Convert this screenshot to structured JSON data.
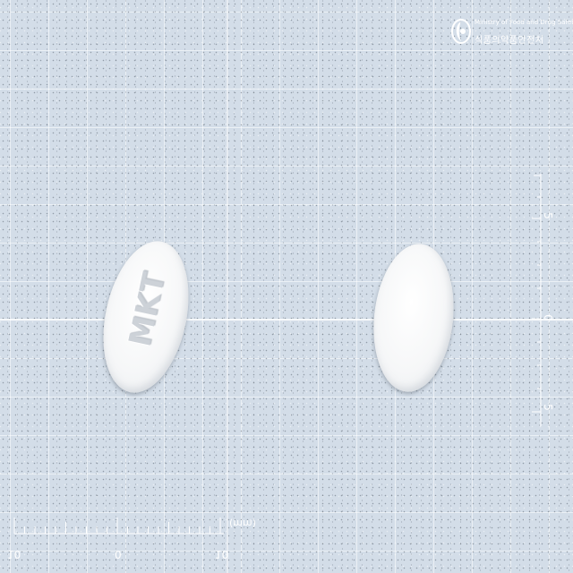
{
  "image": {
    "scene": "two white oval pills on a blue-gray grid background with measurement rulers",
    "background_color": "#d3dde8",
    "pill_color": "#f7f8f9"
  },
  "logo": {
    "line1": "Ministry of Food and Drug Safety",
    "line2": "식품의약품안전처"
  },
  "pills": {
    "front_imprint": "MKT",
    "back_imprint": ""
  },
  "bottom_ruler": {
    "left_label": "10",
    "mid_label": "0",
    "right_label": "10",
    "unit": "(mm)"
  },
  "side_ruler": {
    "top_label": "5",
    "mid_label": "0",
    "bottom_label": "5"
  }
}
